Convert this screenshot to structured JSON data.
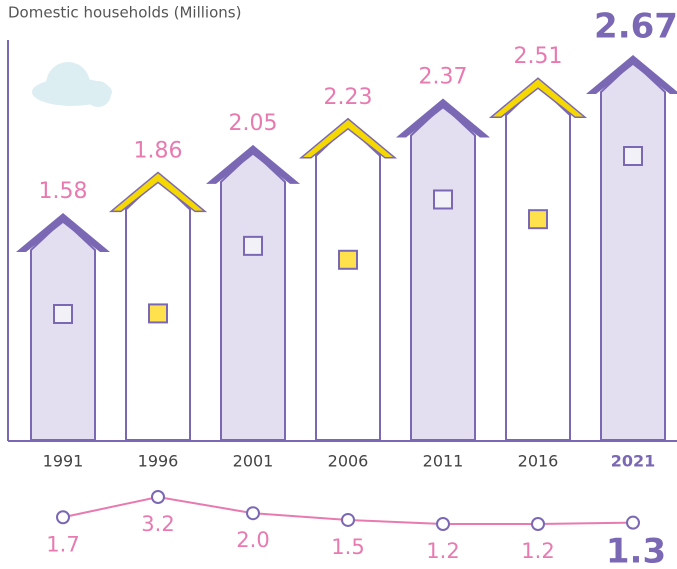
{
  "chart_data": [
    {
      "type": "bar",
      "title": "Domestic households (Millions)",
      "categories": [
        "1991",
        "1996",
        "2001",
        "2006",
        "2011",
        "2016",
        "2021"
      ],
      "values": [
        1.58,
        1.86,
        2.05,
        2.23,
        2.37,
        2.51,
        2.67
      ],
      "colors": [
        "#7b68b5",
        "#f5d800",
        "#7b68b5",
        "#f5d800",
        "#7b68b5",
        "#f5d800",
        "#7b68b5"
      ]
    },
    {
      "type": "line",
      "values": [
        1.7,
        3.2,
        2.0,
        1.5,
        1.2,
        1.2,
        1.3
      ],
      "value_labels": [
        "1.7",
        "3.2",
        "2.0",
        "1.5",
        "1.2",
        "1.2",
        "1.3"
      ],
      "color": "#e87ab0"
    }
  ]
}
